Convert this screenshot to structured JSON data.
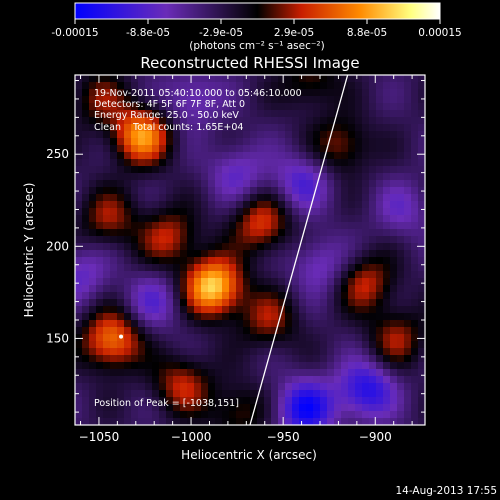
{
  "colorbar": {
    "tick_labels": [
      "-0.00015",
      "-8.8e-05",
      "-2.9e-05",
      "2.9e-05",
      "8.8e-05",
      "0.00015"
    ],
    "unit_label": "(photons cm⁻² s⁻¹ asec⁻²)",
    "colors": [
      "#0000ff",
      "#6a2cb8",
      "#000000",
      "#c81e00",
      "#ff8a00",
      "#ffff80",
      "#ffffff"
    ]
  },
  "chart_data": {
    "type": "heatmap",
    "title": "Reconstructed RHESSI Image",
    "xlabel": "Heliocentric X (arcsec)",
    "ylabel": "Heliocentric Y (arcsec)",
    "xlim": [
      -1063,
      -873
    ],
    "ylim": [
      103,
      293
    ],
    "x_ticks": [
      -1050,
      -1000,
      -950,
      -900
    ],
    "y_ticks": [
      150,
      200,
      250
    ],
    "value_range": [
      -0.00015,
      0.00015
    ],
    "annotations": [
      "19-Nov-2011 05:40:10.000 to 05:46:10.000",
      "Detectors: 4F 5F 6F 7F 8F, Att 0",
      "Energy Range: 25.0 - 50.0 keV",
      "Clean    Total counts: 1.65E+04"
    ],
    "peak_label": "Position of Peak = [-1038,151]",
    "peak": [
      -1038,
      151
    ],
    "limb_line": [
      [
        -968,
        103
      ],
      [
        -915,
        293
      ]
    ],
    "blobs": [
      {
        "x": -988,
        "y": 178,
        "v": 0.00015
      },
      {
        "x": -1027,
        "y": 260,
        "v": 0.00012
      },
      {
        "x": -1043,
        "y": 149,
        "v": 0.00011
      },
      {
        "x": -962,
        "y": 212,
        "v": 8e-05
      },
      {
        "x": -1012,
        "y": 205,
        "v": 7e-05
      },
      {
        "x": -1045,
        "y": 215,
        "v": 6e-05
      },
      {
        "x": -958,
        "y": 160,
        "v": 6e-05
      },
      {
        "x": -905,
        "y": 180,
        "v": 7e-05
      },
      {
        "x": -888,
        "y": 150,
        "v": 6e-05
      },
      {
        "x": -918,
        "y": 255,
        "v": 6e-05
      },
      {
        "x": -1005,
        "y": 125,
        "v": 7e-05
      },
      {
        "x": -935,
        "y": 290,
        "v": 5e-05
      },
      {
        "x": -1050,
        "y": 280,
        "v": 5e-05
      },
      {
        "x": -975,
        "y": 110,
        "v": 5e-05
      },
      {
        "x": -1020,
        "y": 170,
        "v": -5e-05
      },
      {
        "x": -940,
        "y": 235,
        "v": -6e-05
      },
      {
        "x": -930,
        "y": 190,
        "v": -5e-05
      },
      {
        "x": -905,
        "y": 122,
        "v": -9e-05
      },
      {
        "x": -938,
        "y": 112,
        "v": -0.0001
      },
      {
        "x": -1060,
        "y": 185,
        "v": -5e-05
      },
      {
        "x": -975,
        "y": 240,
        "v": -5e-05
      },
      {
        "x": -1000,
        "y": 280,
        "v": -5e-05
      },
      {
        "x": -885,
        "y": 220,
        "v": -4e-05
      }
    ]
  },
  "footer": {
    "timestamp": "14-Aug-2013 17:55"
  }
}
